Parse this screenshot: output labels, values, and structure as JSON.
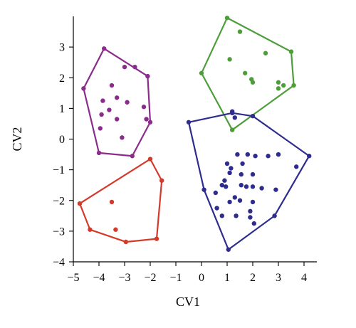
{
  "chart_data": {
    "type": "scatter",
    "title": "",
    "xlabel": "CV1",
    "ylabel": "CV2",
    "xlim": [
      -5,
      4.5
    ],
    "ylim": [
      -4,
      4
    ],
    "xticks": [
      -5,
      -4,
      -3,
      -2,
      -1,
      0,
      1,
      2,
      3,
      4
    ],
    "yticks": [
      -4,
      -3,
      -2,
      -1,
      0,
      1,
      2,
      3
    ],
    "xtick_labels": [
      "−5",
      "−4",
      "−3",
      "−2",
      "−1",
      "0",
      "1",
      "2",
      "3",
      "4"
    ],
    "ytick_labels": [
      "−4",
      "−3",
      "−2",
      "−1",
      "0",
      "1",
      "2",
      "3"
    ],
    "grid": false,
    "legend": "none",
    "series": [
      {
        "color": "#8B2C8C",
        "hull": [
          [
            -3.8,
            2.95
          ],
          [
            -2.1,
            2.05
          ],
          [
            -2.0,
            0.55
          ],
          [
            -2.7,
            -0.55
          ],
          [
            -4.0,
            -0.45
          ],
          [
            -4.6,
            1.65
          ]
        ],
        "points": [
          [
            -3.85,
            1.25
          ],
          [
            -3.5,
            1.75
          ],
          [
            -3.3,
            1.35
          ],
          [
            -3.6,
            0.95
          ],
          [
            -3.0,
            2.35
          ],
          [
            -2.6,
            2.35
          ],
          [
            -2.9,
            1.2
          ],
          [
            -2.25,
            1.05
          ],
          [
            -3.9,
            0.8
          ],
          [
            -3.3,
            0.65
          ],
          [
            -2.15,
            0.65
          ],
          [
            -3.95,
            0.35
          ],
          [
            -3.1,
            0.05
          ]
        ]
      },
      {
        "color": "#4D9E3A",
        "hull": [
          [
            1.0,
            3.95
          ],
          [
            3.5,
            2.85
          ],
          [
            3.6,
            1.75
          ],
          [
            1.2,
            0.3
          ],
          [
            0.0,
            2.15
          ]
        ],
        "points": [
          [
            1.5,
            3.5
          ],
          [
            2.5,
            2.8
          ],
          [
            1.1,
            2.6
          ],
          [
            1.7,
            2.15
          ],
          [
            2.0,
            1.85
          ],
          [
            1.95,
            1.95
          ],
          [
            3.0,
            1.85
          ],
          [
            3.2,
            1.75
          ],
          [
            3.0,
            1.65
          ]
        ]
      },
      {
        "color": "#2E2C8E",
        "hull": [
          [
            1.2,
            0.85
          ],
          [
            2.0,
            0.75
          ],
          [
            4.2,
            -0.55
          ],
          [
            2.85,
            -2.5
          ],
          [
            1.05,
            -3.6
          ],
          [
            0.1,
            -1.65
          ],
          [
            -0.5,
            0.55
          ]
        ],
        "points": [
          [
            1.3,
            0.7
          ],
          [
            1.2,
            0.9
          ],
          [
            1.8,
            -0.5
          ],
          [
            1.4,
            -0.5
          ],
          [
            2.1,
            -0.55
          ],
          [
            2.6,
            -0.55
          ],
          [
            3.0,
            -0.5
          ],
          [
            1.0,
            -0.8
          ],
          [
            1.6,
            -0.8
          ],
          [
            1.15,
            -0.95
          ],
          [
            1.1,
            -1.1
          ],
          [
            0.9,
            -1.35
          ],
          [
            1.55,
            -1.15
          ],
          [
            2.0,
            -1.15
          ],
          [
            3.7,
            -0.9
          ],
          [
            0.8,
            -1.5
          ],
          [
            0.95,
            -1.55
          ],
          [
            1.55,
            -1.5
          ],
          [
            1.75,
            -1.55
          ],
          [
            2.0,
            -1.55
          ],
          [
            2.35,
            -1.6
          ],
          [
            2.9,
            -1.65
          ],
          [
            0.55,
            -1.75
          ],
          [
            1.3,
            -1.9
          ],
          [
            1.1,
            -2.05
          ],
          [
            1.5,
            -2.0
          ],
          [
            2.0,
            -2.05
          ],
          [
            0.6,
            -2.25
          ],
          [
            1.9,
            -2.35
          ],
          [
            0.8,
            -2.5
          ],
          [
            1.35,
            -2.5
          ],
          [
            1.9,
            -2.55
          ],
          [
            2.05,
            -2.75
          ]
        ]
      },
      {
        "color": "#D43A2A",
        "hull": [
          [
            -2.0,
            -0.65
          ],
          [
            -1.55,
            -1.35
          ],
          [
            -1.75,
            -3.25
          ],
          [
            -2.95,
            -3.35
          ],
          [
            -4.35,
            -2.95
          ],
          [
            -4.75,
            -2.1
          ]
        ],
        "points": [
          [
            -3.5,
            -2.05
          ],
          [
            -3.35,
            -2.95
          ]
        ]
      }
    ]
  }
}
